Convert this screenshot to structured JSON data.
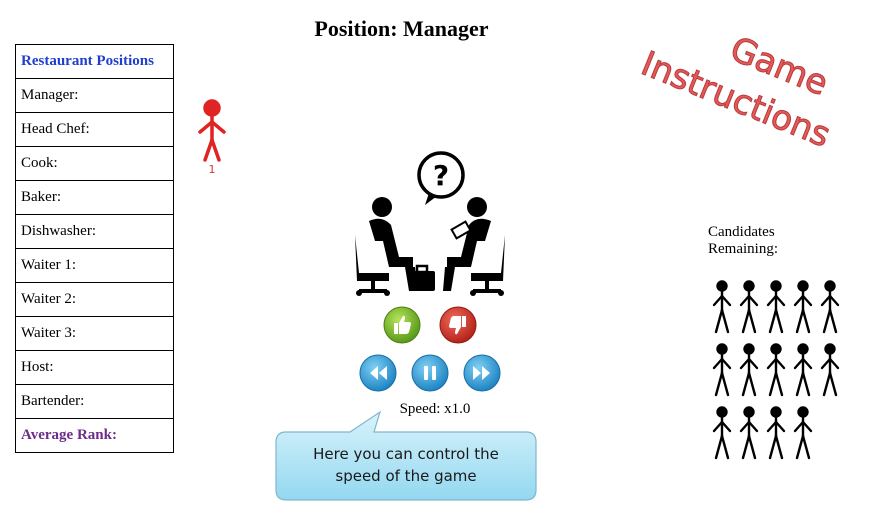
{
  "header": {
    "title": "Position: Manager"
  },
  "positions": {
    "heading": "Restaurant Positions",
    "rows": [
      "Manager:",
      "Head Chef:",
      "Cook:",
      "Baker:",
      "Dishwasher:",
      "Waiter 1:",
      "Waiter 2:",
      "Waiter 3:",
      "Host:",
      "Bartender:"
    ],
    "footer": "Average Rank:"
  },
  "current_candidate": {
    "number": "1",
    "color": "#e02424"
  },
  "controls": {
    "like_icon": "thumbs-up-icon",
    "dislike_icon": "thumbs-down-icon",
    "rewind_icon": "rewind-icon",
    "pause_icon": "pause-icon",
    "forward_icon": "fast-forward-icon",
    "speed_label": "Speed: x1.0"
  },
  "tooltip": {
    "text_line1": "Here you can control the",
    "text_line2": "speed of the game"
  },
  "instructions": {
    "line1": "Game",
    "line2": "Instructions",
    "color": "#e45a5a"
  },
  "candidates": {
    "label_line1": "Candidates",
    "label_line2": "Remaining:",
    "rows": [
      5,
      5,
      4
    ]
  }
}
